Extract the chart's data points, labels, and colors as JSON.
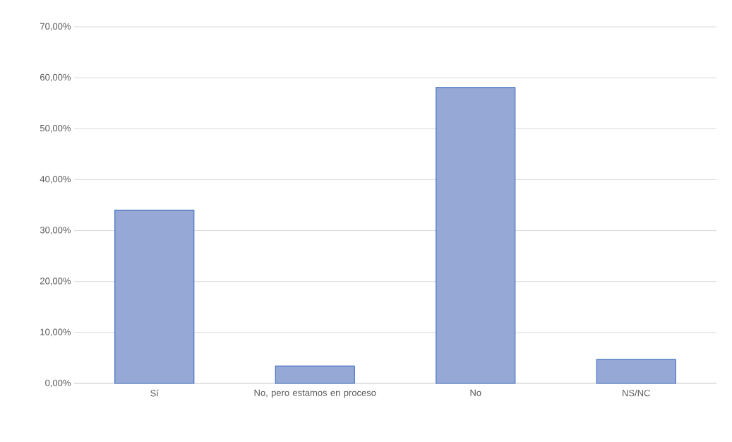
{
  "chart_data": {
    "type": "bar",
    "categories": [
      "Sí",
      "No, pero estamos en proceso",
      "No",
      "NS/NC"
    ],
    "values": [
      34.0,
      3.4,
      58.1,
      4.7
    ],
    "color": "#96a9d6",
    "ylim": [
      0,
      70
    ],
    "yticks": [
      {
        "value": 0,
        "label": "0,00%"
      },
      {
        "value": 10,
        "label": "10,00%"
      },
      {
        "value": 20,
        "label": "20,00%"
      },
      {
        "value": 30,
        "label": "30,00%"
      },
      {
        "value": 40,
        "label": "40,00%"
      },
      {
        "value": 50,
        "label": "50,00%"
      },
      {
        "value": 60,
        "label": "60,00%"
      },
      {
        "value": 70,
        "label": "70,00%"
      }
    ],
    "grid": "y"
  }
}
